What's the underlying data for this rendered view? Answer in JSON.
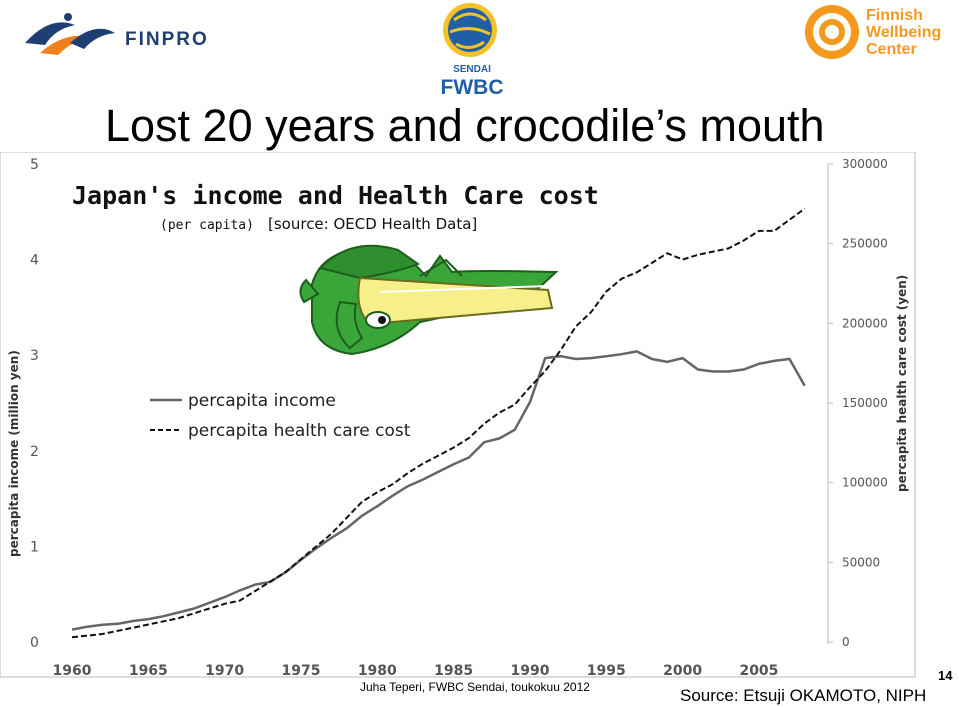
{
  "slide": {
    "title": "Lost 20 years and crocodile’s mouth",
    "footer_credit": "Juha Teperi, FWBC Sendai, toukokuu 2012",
    "slide_number": "14",
    "source_note": "Source: Etsuji OKAMOTO, NIPH"
  },
  "logos": {
    "finpro": "FINPRO",
    "sendai_top": "SENDAI",
    "sendai_bottom": "FWBC",
    "fwc_line1": "Finnish",
    "fwc_line2": "Wellbeing",
    "fwc_line3": "Center"
  },
  "colors": {
    "finpro_blue": "#1f3f73",
    "finpro_orange": "#f07f1e",
    "fwc_orange": "#f39a1e",
    "income_line": "#666666",
    "health_line": "#111111",
    "croc_green": "#3aa63a",
    "croc_yellow": "#f7f08a"
  },
  "chart_data": {
    "type": "line",
    "title": "Japan's income and Health Care cost",
    "subtitle_left": "(per capita)",
    "subtitle_right": "[source: OECD Health Data]",
    "ylabel": "percapita income (million yen)",
    "y2label": "percapita health care cost (yen)",
    "ylim": [
      0,
      5
    ],
    "y2lim": [
      0,
      300000
    ],
    "xlim": [
      1960,
      2009
    ],
    "x_ticks": [
      "1960",
      "1965",
      "1970",
      "1975",
      "1980",
      "1985",
      "1990",
      "1995",
      "2000",
      "2005"
    ],
    "y_ticks": [
      "0",
      "1",
      "2",
      "3",
      "4",
      "5"
    ],
    "y2_ticks": [
      "0",
      "50000",
      "100000",
      "150000",
      "200000",
      "250000",
      "300000"
    ],
    "grid": false,
    "series": [
      {
        "name": "percapita income",
        "axis": "left",
        "style": "solid",
        "x": [
          1960,
          1961,
          1962,
          1963,
          1964,
          1965,
          1966,
          1967,
          1968,
          1969,
          1970,
          1971,
          1972,
          1973,
          1974,
          1975,
          1976,
          1977,
          1978,
          1979,
          1980,
          1981,
          1982,
          1983,
          1984,
          1985,
          1986,
          1987,
          1988,
          1989,
          1990,
          1991,
          1992,
          1993,
          1994,
          1995,
          1996,
          1997,
          1998,
          1999,
          2000,
          2001,
          2002,
          2003,
          2004,
          2005,
          2006,
          2007,
          2008
        ],
        "values": [
          0.13,
          0.16,
          0.18,
          0.19,
          0.22,
          0.24,
          0.27,
          0.31,
          0.35,
          0.41,
          0.47,
          0.54,
          0.6,
          0.63,
          0.73,
          0.86,
          0.98,
          1.09,
          1.19,
          1.32,
          1.42,
          1.53,
          1.63,
          1.7,
          1.78,
          1.86,
          1.93,
          2.09,
          2.13,
          2.22,
          2.51,
          2.97,
          2.99,
          2.96,
          2.97,
          2.99,
          3.01,
          3.04,
          2.96,
          2.93,
          2.97,
          2.85,
          2.83,
          2.83,
          2.85,
          2.91,
          2.94,
          2.96,
          2.68
        ]
      },
      {
        "name": "percapita health care cost",
        "axis": "right",
        "style": "dashed",
        "x": [
          1960,
          1961,
          1962,
          1963,
          1964,
          1965,
          1966,
          1967,
          1968,
          1969,
          1970,
          1971,
          1972,
          1973,
          1974,
          1975,
          1976,
          1977,
          1978,
          1979,
          1980,
          1981,
          1982,
          1983,
          1984,
          1985,
          1986,
          1987,
          1988,
          1989,
          1990,
          1991,
          1992,
          1993,
          1994,
          1995,
          1996,
          1997,
          1998,
          1999,
          2000,
          2001,
          2002,
          2003,
          2004,
          2005,
          2006,
          2007,
          2008
        ],
        "values": [
          3000,
          4000,
          5000,
          7000,
          9000,
          11000,
          13000,
          15000,
          18000,
          21000,
          24000,
          26000,
          32000,
          38000,
          44000,
          52000,
          60000,
          68000,
          78000,
          88000,
          94000,
          99000,
          106000,
          112000,
          117000,
          122000,
          128000,
          137000,
          144000,
          149000,
          160000,
          170000,
          183000,
          198000,
          207000,
          220000,
          228000,
          232000,
          238000,
          244000,
          240000,
          243000,
          245000,
          247000,
          252000,
          258000,
          258000,
          265000,
          272000
        ]
      }
    ],
    "legend": [
      {
        "label": "percapita income",
        "style": "solid"
      },
      {
        "label": "percapita health care cost",
        "style": "dashed"
      }
    ]
  }
}
